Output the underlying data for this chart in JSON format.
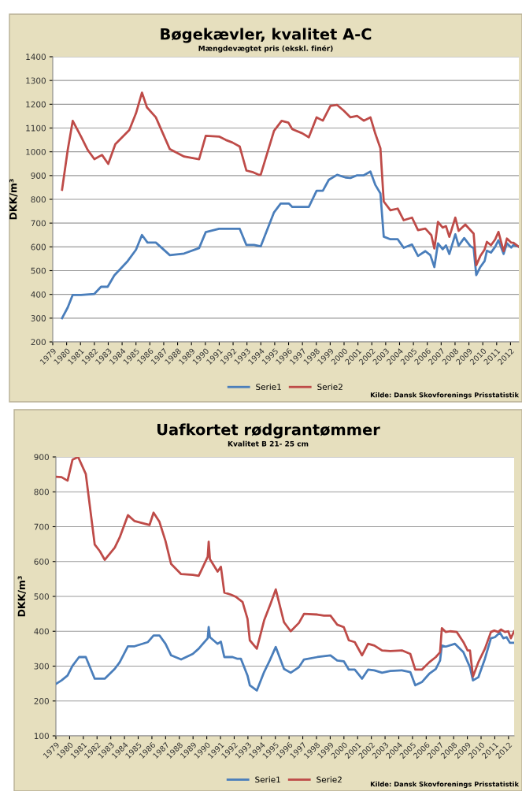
{
  "chart_data": [
    {
      "type": "line",
      "title": "Bøgekævler, kvalitet A-C",
      "subtitle": "Mængdevægtet pris (ekskl. finér)",
      "ylabel": "DKK/m³",
      "xlim": [
        1979,
        2012.6
      ],
      "xticks": [
        1979,
        1980,
        1981,
        1982,
        1983,
        1984,
        1985,
        1986,
        1987,
        1988,
        1989,
        1990,
        1991,
        1992,
        1993,
        1994,
        1995,
        1996,
        1997,
        1998,
        1999,
        2000,
        2001,
        2002,
        2003,
        2004,
        2005,
        2006,
        2007,
        2008,
        2009,
        2010,
        2011,
        2012
      ],
      "ylim": [
        200,
        1400
      ],
      "yticks": [
        200,
        300,
        400,
        500,
        600,
        700,
        800,
        900,
        1000,
        1100,
        1200,
        1300,
        1400
      ],
      "grid": "y",
      "legend": "bottom",
      "marker": "none",
      "line_style": "solid",
      "annotations": [
        "Kilde: Dansk Skovforenings Prisstatistik"
      ],
      "series": [
        {
          "name": "Serie1",
          "color": "#4a7ebb",
          "x": [
            1979.67,
            1980.08,
            1980.44,
            1981.04,
            1982.0,
            1982.48,
            1982.96,
            1983.44,
            1984.4,
            1985.0,
            1985.43,
            1985.83,
            1986.43,
            1987.44,
            1988.47,
            1989.55,
            1990.03,
            1990.99,
            1992.48,
            1992.96,
            1993.51,
            1993.99,
            1994.95,
            1995.43,
            1996.03,
            1996.27,
            1997.46,
            1998.02,
            1998.47,
            1998.9,
            1999.5,
            2000.1,
            2000.46,
            2000.94,
            2001.42,
            2001.9,
            2002.26,
            2002.62,
            2002.86,
            2003.34,
            2003.87,
            2004.3,
            2004.9,
            2005.33,
            2005.86,
            2006.22,
            2006.51,
            2006.77,
            2007.11,
            2007.35,
            2007.59,
            2008.02,
            2008.26,
            2008.66,
            2009.1,
            2009.34,
            2009.53,
            2009.82,
            2010.13,
            2010.3,
            2010.59,
            2010.89,
            2011.13,
            2011.5,
            2011.74,
            2012.05,
            2012.21,
            2012.6
          ],
          "values": [
            300,
            345,
            398,
            398,
            402,
            432,
            432,
            480,
            540,
            588,
            650,
            618,
            618,
            565,
            572,
            595,
            662,
            676,
            676,
            608,
            608,
            602,
            745,
            782,
            782,
            768,
            768,
            836,
            836,
            882,
            903,
            892,
            890,
            901,
            901,
            917,
            860,
            825,
            643,
            632,
            632,
            596,
            610,
            562,
            582,
            565,
            515,
            615,
            590,
            606,
            570,
            653,
            605,
            637,
            603,
            595,
            481,
            515,
            540,
            584,
            576,
            600,
            628,
            570,
            615,
            597,
            608,
            600
          ]
        },
        {
          "name": "Serie2",
          "color": "#be4b48",
          "x": [
            1979.67,
            1980.08,
            1980.44,
            1981.04,
            1981.52,
            1982.0,
            1982.55,
            1983.0,
            1983.51,
            1984.52,
            1985.0,
            1985.43,
            1985.79,
            1986.43,
            1987.44,
            1988.47,
            1989.55,
            1990.03,
            1990.99,
            1991.47,
            1991.95,
            1992.48,
            1992.96,
            1993.39,
            1993.87,
            1993.99,
            1994.95,
            1995.5,
            1995.98,
            1996.27,
            1996.98,
            1997.46,
            1998.02,
            1998.47,
            1999.02,
            1999.5,
            1999.98,
            2000.46,
            2000.94,
            2001.42,
            2001.9,
            2002.26,
            2002.62,
            2002.86,
            2003.34,
            2003.87,
            2004.3,
            2004.9,
            2005.33,
            2005.86,
            2006.29,
            2006.51,
            2006.77,
            2007.11,
            2007.35,
            2007.59,
            2008.02,
            2008.26,
            2008.74,
            2009.34,
            2009.53,
            2009.82,
            2010.13,
            2010.3,
            2010.59,
            2010.89,
            2011.13,
            2011.5,
            2011.74,
            2012.05,
            2012.21,
            2012.6
          ],
          "values": [
            840,
            1008,
            1130,
            1064,
            1008,
            969,
            987,
            949,
            1032,
            1092,
            1162,
            1249,
            1187,
            1145,
            1011,
            980,
            969,
            1067,
            1064,
            1050,
            1039,
            1022,
            921,
            915,
            903,
            903,
            1088,
            1130,
            1123,
            1095,
            1078,
            1061,
            1145,
            1131,
            1193,
            1197,
            1173,
            1145,
            1151,
            1131,
            1145,
            1075,
            1015,
            791,
            754,
            761,
            712,
            723,
            670,
            677,
            649,
            593,
            705,
            681,
            687,
            642,
            723,
            667,
            694,
            656,
            523,
            561,
            589,
            621,
            607,
            631,
            663,
            582,
            635,
            618,
            617,
            600
          ]
        }
      ]
    },
    {
      "type": "line",
      "title": "Uafkortet rødgrantømmer",
      "subtitle": "Kvalitet B 21- 25 cm",
      "ylabel": "DKK/m³",
      "xlim": [
        1979,
        2012.41
      ],
      "xticks": [
        1979,
        1980,
        1981,
        1982,
        1983,
        1984,
        1985,
        1986,
        1987,
        1988,
        1989,
        1990,
        1991,
        1992,
        1993,
        1994,
        1995,
        1996,
        1997,
        1998,
        1999,
        2000,
        2001,
        2002,
        2003,
        2004,
        2005,
        2006,
        2007,
        2008,
        2009,
        2010,
        2011,
        2012
      ],
      "ylim": [
        100,
        900
      ],
      "yticks": [
        100,
        200,
        300,
        400,
        500,
        600,
        700,
        800,
        900
      ],
      "grid": "y",
      "legend": "bottom",
      "marker": "none",
      "line_style": "solid",
      "annotations": [
        "Kilde: Dansk Skovforenings Prisstatistik"
      ],
      "series": [
        {
          "name": "Serie1",
          "color": "#4a7ebb",
          "x": [
            1979.0,
            1979.41,
            1979.85,
            1980.21,
            1980.69,
            1981.18,
            1981.83,
            1982.56,
            1983.29,
            1983.65,
            1984.25,
            1984.74,
            1985.71,
            1986.12,
            1986.55,
            1986.99,
            1987.4,
            1988.13,
            1988.98,
            1989.41,
            1990.07,
            1990.14,
            1990.23,
            1990.79,
            1991.03,
            1991.28,
            1991.88,
            1992.24,
            1992.49,
            1992.97,
            1993.14,
            1993.65,
            1994.18,
            1994.59,
            1995.03,
            1995.63,
            1996.12,
            1996.72,
            1997.09,
            1998.06,
            1999.02,
            1999.51,
            1999.99,
            2000.36,
            2000.79,
            2001.32,
            2001.76,
            2002.22,
            2002.78,
            2003.38,
            2004.23,
            2004.84,
            2005.2,
            2005.68,
            2006.22,
            2006.7,
            2007.01,
            2007.14,
            2007.43,
            2008.1,
            2008.71,
            2009.19,
            2009.41,
            2009.8,
            2010.28,
            2010.72,
            2011.01,
            2011.37,
            2011.62,
            2011.86,
            2012.1,
            2012.41
          ],
          "values": [
            249,
            259,
            273,
            301,
            326,
            326,
            264,
            264,
            292,
            311,
            357,
            357,
            369,
            388,
            388,
            364,
            331,
            319,
            335,
            350,
            380,
            412,
            383,
            364,
            370,
            326,
            326,
            321,
            321,
            273,
            245,
            230,
            283,
            316,
            355,
            292,
            281,
            297,
            319,
            326,
            331,
            316,
            314,
            290,
            290,
            264,
            290,
            288,
            281,
            286,
            288,
            283,
            245,
            254,
            278,
            292,
            316,
            359,
            356,
            364,
            340,
            297,
            259,
            268,
            321,
            380,
            383,
            396,
            380,
            383,
            367,
            367
          ]
        },
        {
          "name": "Serie2",
          "color": "#be4b48",
          "x": [
            1979.0,
            1979.41,
            1979.85,
            1980.21,
            1980.62,
            1981.18,
            1981.83,
            1982.2,
            1982.56,
            1983.29,
            1983.65,
            1984.25,
            1984.74,
            1985.83,
            1986.12,
            1986.55,
            1986.99,
            1987.4,
            1988.13,
            1988.98,
            1989.41,
            1990.07,
            1990.14,
            1990.23,
            1990.79,
            1991.03,
            1991.28,
            1991.76,
            1992.12,
            1992.37,
            1992.61,
            1992.97,
            1993.14,
            1993.65,
            1994.18,
            1994.67,
            1995.03,
            1995.63,
            1996.12,
            1996.72,
            1997.09,
            1998.06,
            1998.54,
            1999.02,
            1999.51,
            1999.99,
            2000.36,
            2000.79,
            2001.32,
            2001.76,
            2002.22,
            2002.78,
            2003.38,
            2004.23,
            2004.84,
            2005.2,
            2005.68,
            2006.22,
            2006.7,
            2007.01,
            2007.14,
            2007.43,
            2007.74,
            2008.23,
            2008.71,
            2009.02,
            2009.19,
            2009.41,
            2009.8,
            2010.28,
            2010.72,
            2010.96,
            2011.25,
            2011.45,
            2011.74,
            2011.98,
            2012.17,
            2012.41
          ],
          "values": [
            843,
            842,
            832,
            892,
            900,
            851,
            649,
            630,
            605,
            640,
            669,
            733,
            716,
            705,
            740,
            714,
            659,
            593,
            564,
            562,
            559,
            614,
            657,
            607,
            571,
            585,
            511,
            505,
            499,
            491,
            484,
            436,
            374,
            350,
            431,
            481,
            520,
            426,
            400,
            424,
            450,
            448,
            445,
            445,
            419,
            412,
            374,
            369,
            331,
            364,
            359,
            345,
            343,
            345,
            335,
            290,
            290,
            311,
            326,
            340,
            409,
            398,
            400,
            398,
            369,
            345,
            345,
            270,
            311,
            350,
            398,
            402,
            398,
            405,
            398,
            400,
            380,
            400
          ]
        }
      ]
    }
  ]
}
